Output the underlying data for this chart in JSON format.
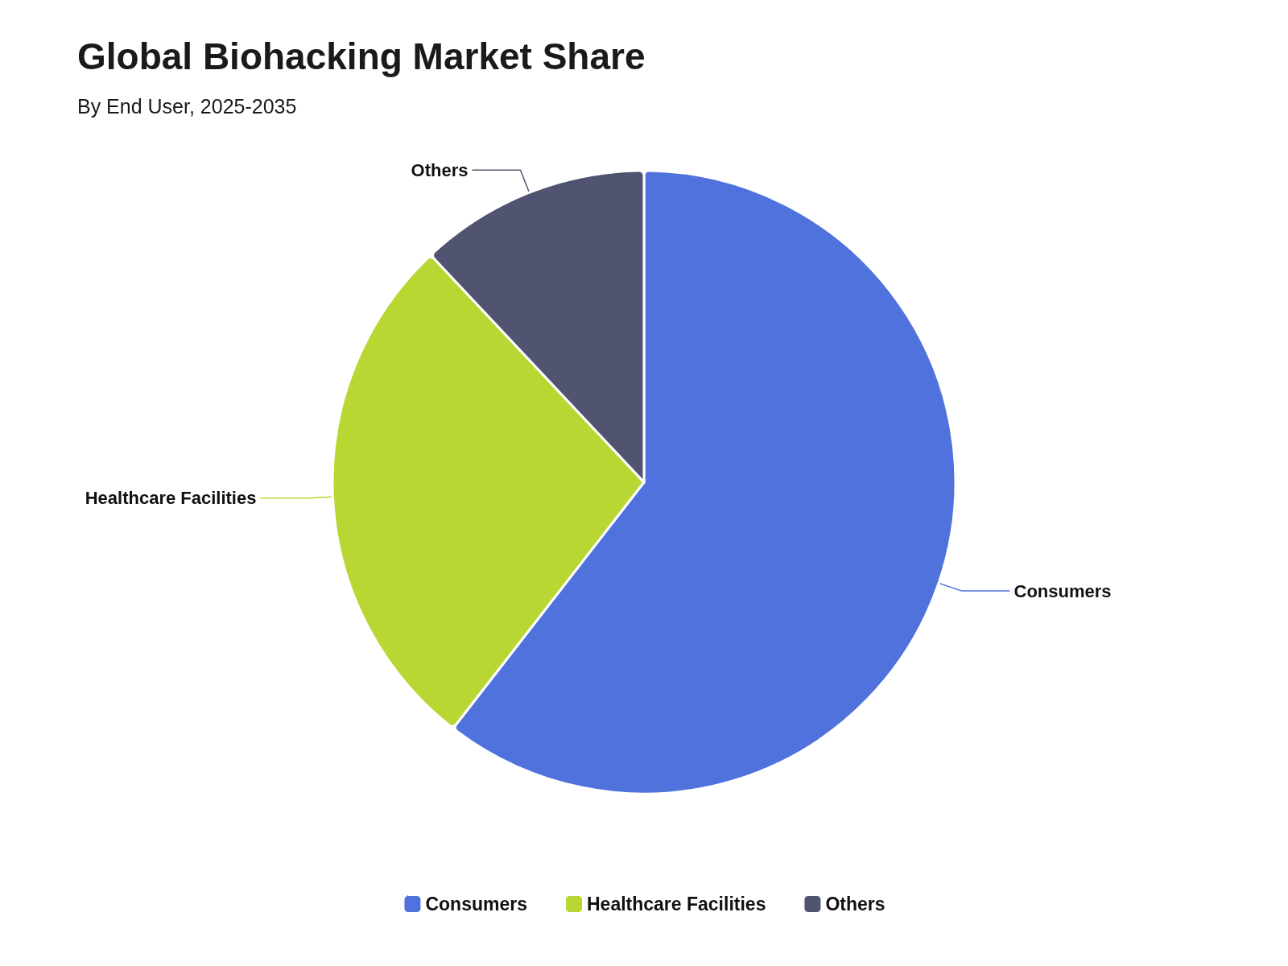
{
  "chart_data": {
    "type": "pie",
    "title": "Global Biohacking Market Share",
    "subtitle": "By End User, 2025-2035",
    "categories": [
      "Consumers",
      "Healthcare Facilities",
      "Others"
    ],
    "values": [
      60.5,
      27.5,
      12.0
    ],
    "colors": [
      "#5072dc",
      "#b8d733",
      "#505470"
    ],
    "legend": "bottom"
  }
}
